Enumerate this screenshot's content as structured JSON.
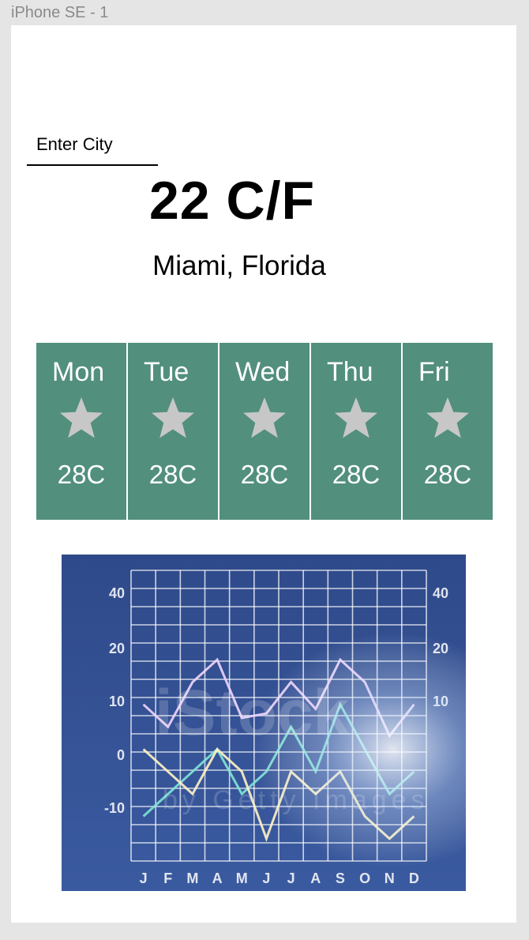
{
  "frame": {
    "label": "iPhone SE - 1"
  },
  "search": {
    "placeholder": "Enter City",
    "value": ""
  },
  "current": {
    "temperature": "22 C/F",
    "location": "Miami, Florida"
  },
  "forecast": [
    {
      "day": "Mon",
      "icon": "star-icon",
      "temp": "28C"
    },
    {
      "day": "Tue",
      "icon": "star-icon",
      "temp": "28C"
    },
    {
      "day": "Wed",
      "icon": "star-icon",
      "temp": "28C"
    },
    {
      "day": "Thu",
      "icon": "star-icon",
      "temp": "28C"
    },
    {
      "day": "Fri",
      "icon": "star-icon",
      "temp": "28C"
    }
  ],
  "colors": {
    "card": "#528f7d",
    "icon": "#c7c7c7",
    "chart_bg": "#2f4a8a"
  },
  "chart_data": {
    "type": "line",
    "categories": [
      "J",
      "F",
      "M",
      "A",
      "M",
      "J",
      "J",
      "A",
      "S",
      "O",
      "N",
      "D"
    ],
    "y_ticks_left": [
      "40",
      "20",
      "10",
      "0",
      "-10"
    ],
    "y_ticks_right": [
      "40",
      "20",
      "10"
    ],
    "series": [
      {
        "values": [
          15,
          10,
          20,
          25,
          12,
          13,
          20,
          14,
          25,
          20,
          8,
          15
        ]
      },
      {
        "values": [
          -10,
          -5,
          0,
          5,
          -5,
          0,
          10,
          0,
          15,
          5,
          -5,
          0
        ]
      },
      {
        "values": [
          5,
          0,
          -5,
          5,
          0,
          -15,
          0,
          -5,
          0,
          -10,
          -15,
          -10
        ]
      }
    ],
    "watermark": [
      "iStock",
      "by Getty Images"
    ]
  }
}
